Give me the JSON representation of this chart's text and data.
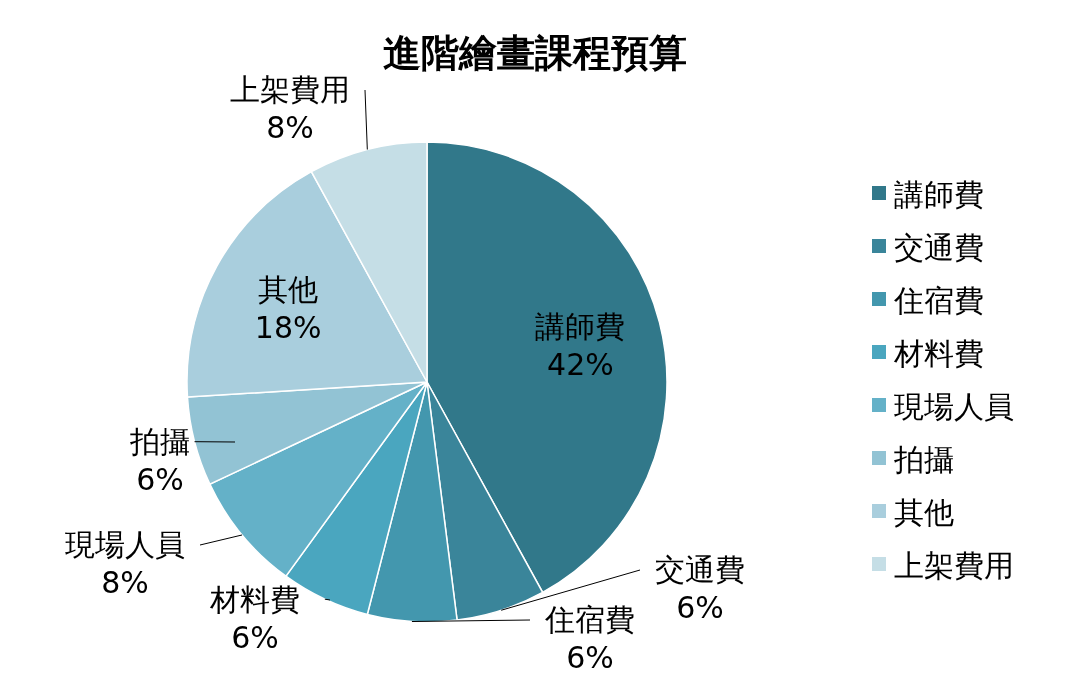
{
  "chart_data": {
    "type": "pie",
    "title": "進階繪畫課程預算",
    "categories": [
      "講師費",
      "交通費",
      "住宿費",
      "材料費",
      "現場人員",
      "拍攝",
      "其他",
      "上架費用"
    ],
    "values": [
      42,
      6,
      6,
      6,
      8,
      6,
      18,
      8
    ],
    "colors": [
      "#31788a",
      "#3a859a",
      "#4397ae",
      "#4aa6bf",
      "#64b1c8",
      "#92c3d4",
      "#a9cedd",
      "#c5dee6"
    ],
    "value_labels": [
      "42%",
      "6%",
      "6%",
      "6%",
      "8%",
      "6%",
      "18%",
      "8%"
    ],
    "legend": "right"
  }
}
